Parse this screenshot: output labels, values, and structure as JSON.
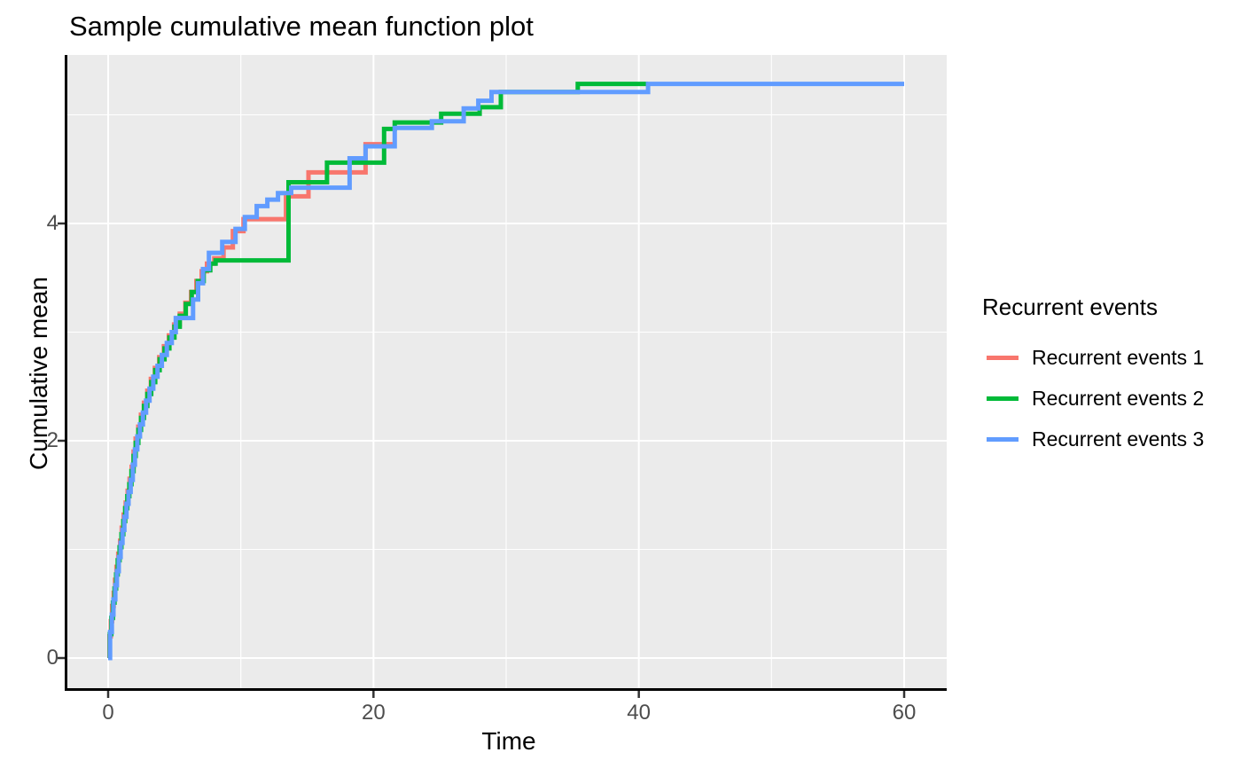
{
  "chart_data": {
    "type": "line",
    "variant": "step",
    "title": "Sample cumulative mean function plot",
    "xlabel": "Time",
    "ylabel": "Cumulative mean",
    "xlim": [
      0,
      60
    ],
    "ylim": [
      0,
      5.3
    ],
    "x_major_ticks": [
      0,
      20,
      40,
      60
    ],
    "x_minor_ticks": [
      10,
      30,
      50
    ],
    "y_major_ticks": [
      0,
      2,
      4
    ],
    "y_minor_ticks": [
      1,
      3,
      5
    ],
    "grid": true,
    "legend_position": "right",
    "colors": {
      "panel_background": "#EBEBEB",
      "grid": "#FFFFFF",
      "axis_line": "#000000",
      "tick_mark": "#333333",
      "tick_label": "#4D4D4D",
      "text": "#000000"
    },
    "legend": {
      "title": "Recurrent events"
    },
    "series": [
      {
        "name": "Recurrent events 1",
        "color": "#F8766D",
        "points": [
          [
            0,
            0
          ],
          [
            0.1,
            0.2
          ],
          [
            0.2,
            0.34
          ],
          [
            0.3,
            0.48
          ],
          [
            0.42,
            0.6
          ],
          [
            0.52,
            0.72
          ],
          [
            0.63,
            0.84
          ],
          [
            0.76,
            0.96
          ],
          [
            0.9,
            1.08
          ],
          [
            1.02,
            1.2
          ],
          [
            1.17,
            1.32
          ],
          [
            1.32,
            1.43
          ],
          [
            1.47,
            1.54
          ],
          [
            1.62,
            1.65
          ],
          [
            1.77,
            1.76
          ],
          [
            1.92,
            1.9
          ],
          [
            2.07,
            2.02
          ],
          [
            2.27,
            2.13
          ],
          [
            2.47,
            2.24
          ],
          [
            2.7,
            2.35
          ],
          [
            2.95,
            2.46
          ],
          [
            3.22,
            2.57
          ],
          [
            3.52,
            2.67
          ],
          [
            3.85,
            2.77
          ],
          [
            4.2,
            2.87
          ],
          [
            4.58,
            2.97
          ],
          [
            4.97,
            3.07
          ],
          [
            5.4,
            3.17
          ],
          [
            5.82,
            3.27
          ],
          [
            6.25,
            3.37
          ],
          [
            6.65,
            3.47
          ],
          [
            7.05,
            3.56
          ],
          [
            7.45,
            3.63
          ],
          [
            8.0,
            3.68
          ],
          [
            8.7,
            3.78
          ],
          [
            9.4,
            3.93
          ],
          [
            10.2,
            4.04
          ],
          [
            13.4,
            4.25
          ],
          [
            15.1,
            4.47
          ],
          [
            19.4,
            4.73
          ],
          [
            21.5,
            4.73
          ]
        ]
      },
      {
        "name": "Recurrent events 2",
        "color": "#00BA38",
        "points": [
          [
            0,
            0
          ],
          [
            0.12,
            0.22
          ],
          [
            0.24,
            0.37
          ],
          [
            0.36,
            0.51
          ],
          [
            0.48,
            0.64
          ],
          [
            0.6,
            0.77
          ],
          [
            0.72,
            0.9
          ],
          [
            0.86,
            1.02
          ],
          [
            1.0,
            1.14
          ],
          [
            1.14,
            1.26
          ],
          [
            1.28,
            1.38
          ],
          [
            1.44,
            1.49
          ],
          [
            1.6,
            1.6
          ],
          [
            1.76,
            1.72
          ],
          [
            1.92,
            1.86
          ],
          [
            2.08,
            1.98
          ],
          [
            2.28,
            2.1
          ],
          [
            2.48,
            2.21
          ],
          [
            2.7,
            2.32
          ],
          [
            2.95,
            2.43
          ],
          [
            3.25,
            2.54
          ],
          [
            3.55,
            2.65
          ],
          [
            3.88,
            2.75
          ],
          [
            4.25,
            2.85
          ],
          [
            4.62,
            2.95
          ],
          [
            5.0,
            3.05
          ],
          [
            5.4,
            3.15
          ],
          [
            5.85,
            3.26
          ],
          [
            6.3,
            3.37
          ],
          [
            6.75,
            3.47
          ],
          [
            7.2,
            3.57
          ],
          [
            7.7,
            3.63
          ],
          [
            8.1,
            3.66
          ],
          [
            13.6,
            4.38
          ],
          [
            16.5,
            4.56
          ],
          [
            20.8,
            4.87
          ],
          [
            21.6,
            4.93
          ],
          [
            25.1,
            5.01
          ],
          [
            28.0,
            5.07
          ],
          [
            29.6,
            5.21
          ],
          [
            35.4,
            5.285
          ],
          [
            40.7,
            5.285
          ]
        ]
      },
      {
        "name": "Recurrent events 3",
        "color": "#619CFF",
        "points": [
          [
            0,
            0
          ],
          [
            0.15,
            0.24
          ],
          [
            0.28,
            0.4
          ],
          [
            0.4,
            0.54
          ],
          [
            0.54,
            0.67
          ],
          [
            0.66,
            0.8
          ],
          [
            0.8,
            0.93
          ],
          [
            0.94,
            1.06
          ],
          [
            1.08,
            1.18
          ],
          [
            1.22,
            1.3
          ],
          [
            1.38,
            1.42
          ],
          [
            1.54,
            1.53
          ],
          [
            1.7,
            1.64
          ],
          [
            1.86,
            1.78
          ],
          [
            2.02,
            1.92
          ],
          [
            2.2,
            2.04
          ],
          [
            2.4,
            2.15
          ],
          [
            2.62,
            2.26
          ],
          [
            2.86,
            2.37
          ],
          [
            3.12,
            2.48
          ],
          [
            3.4,
            2.59
          ],
          [
            3.72,
            2.69
          ],
          [
            4.05,
            2.79
          ],
          [
            4.42,
            2.9
          ],
          [
            4.8,
            3.0
          ],
          [
            5.1,
            3.13
          ],
          [
            6.4,
            3.3
          ],
          [
            6.78,
            3.45
          ],
          [
            7.15,
            3.58
          ],
          [
            7.6,
            3.73
          ],
          [
            8.6,
            3.83
          ],
          [
            9.6,
            3.95
          ],
          [
            10.3,
            4.06
          ],
          [
            11.2,
            4.16
          ],
          [
            12.0,
            4.22
          ],
          [
            12.8,
            4.28
          ],
          [
            13.8,
            4.33
          ],
          [
            18.2,
            4.6
          ],
          [
            19.4,
            4.71
          ],
          [
            21.6,
            4.88
          ],
          [
            24.4,
            4.94
          ],
          [
            26.8,
            5.06
          ],
          [
            27.9,
            5.13
          ],
          [
            28.9,
            5.21
          ],
          [
            40.7,
            5.285
          ],
          [
            60,
            5.285
          ]
        ]
      }
    ]
  }
}
